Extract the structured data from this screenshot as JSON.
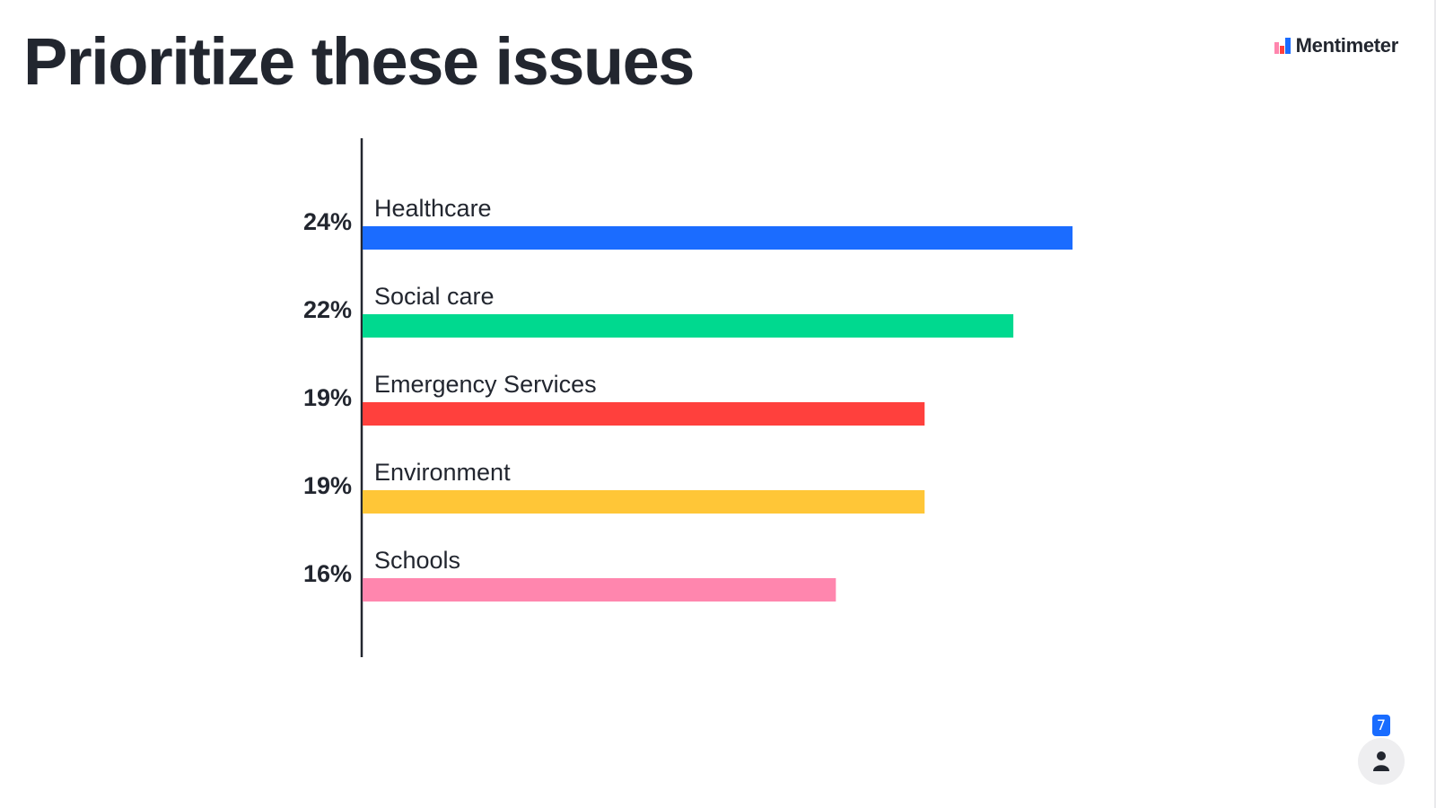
{
  "slide": {
    "title": "Prioritize these issues"
  },
  "brand": {
    "name": "Mentimeter",
    "logo_icon": "mentimeter-logo-icon"
  },
  "participants": {
    "count": "7",
    "icon": "person-icon"
  },
  "colors": {
    "healthcare": "#1b6cff",
    "social_care": "#00d98f",
    "emergency_services": "#ff403d",
    "environment": "#ffc637",
    "schools": "#ff86ae",
    "axis": "#22262f",
    "badge": "#196cff"
  },
  "chart_data": {
    "type": "bar",
    "orientation": "horizontal",
    "title": "Prioritize these issues",
    "categories": [
      "Healthcare",
      "Social care",
      "Emergency Services",
      "Environment",
      "Schools"
    ],
    "values": [
      24,
      22,
      19,
      19,
      16
    ],
    "labels": [
      "24%",
      "22%",
      "19%",
      "19%",
      "16%"
    ],
    "unit": "%",
    "colors": [
      "#1b6cff",
      "#00d98f",
      "#ff403d",
      "#ffc637",
      "#ff86ae"
    ],
    "xlabel": "",
    "ylabel": "",
    "xlim": [
      0,
      24
    ]
  }
}
